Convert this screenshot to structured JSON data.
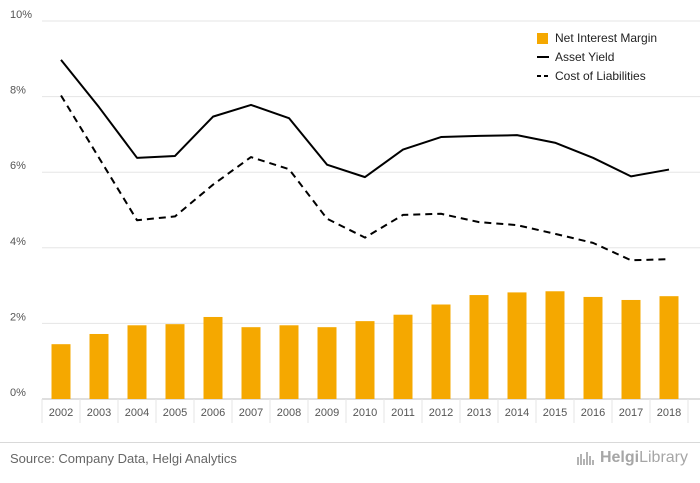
{
  "colors": {
    "bar": "#f5a800",
    "line": "#000000",
    "grid": "#e5e5e5",
    "axis": "#bfbfbf",
    "logo": "#a6a6a6"
  },
  "footer": {
    "source": "Source: Company Data, Helgi Analytics",
    "logo_prefix": "Helgi",
    "logo_suffix": "Library"
  },
  "chart_data": {
    "type": "bar",
    "categories": [
      "2002",
      "2003",
      "2004",
      "2005",
      "2006",
      "2007",
      "2008",
      "2009",
      "2010",
      "2011",
      "2012",
      "2013",
      "2014",
      "2015",
      "2016",
      "2017",
      "2018"
    ],
    "ylim": [
      0,
      10
    ],
    "yticks": [
      "0%",
      "2%",
      "4%",
      "6%",
      "8%",
      "10%"
    ],
    "grid": true,
    "legend_position": "top-right",
    "series": [
      {
        "name": "Net Interest Margin",
        "kind": "bar",
        "values": [
          1.45,
          1.72,
          1.95,
          1.98,
          2.17,
          1.9,
          1.95,
          1.9,
          2.06,
          2.23,
          2.5,
          2.75,
          2.82,
          2.85,
          2.7,
          2.62,
          2.72
        ]
      },
      {
        "name": "Asset Yield",
        "kind": "line",
        "style": "solid",
        "values": [
          8.97,
          7.72,
          6.38,
          6.43,
          7.47,
          7.78,
          7.43,
          6.2,
          5.87,
          6.6,
          6.93,
          6.96,
          6.98,
          6.78,
          6.38,
          5.89,
          6.07
        ]
      },
      {
        "name": "Cost of Liabilities",
        "kind": "line",
        "style": "dashed",
        "values": [
          8.03,
          6.38,
          4.73,
          4.83,
          5.67,
          6.4,
          6.08,
          4.77,
          4.27,
          4.87,
          4.9,
          4.68,
          4.6,
          4.37,
          4.13,
          3.67,
          3.7
        ]
      }
    ]
  }
}
